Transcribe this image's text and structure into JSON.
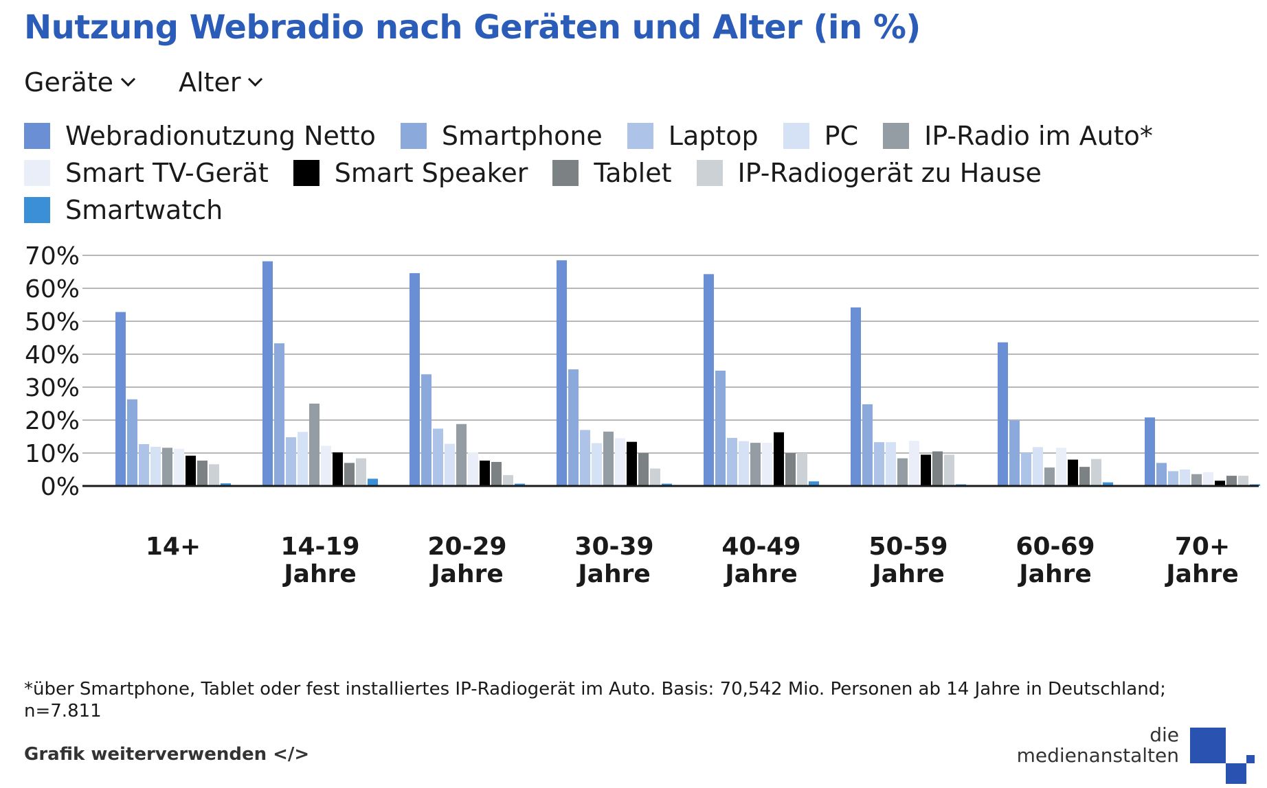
{
  "header": {
    "title": "Nutzung Webradio nach Geräten und Alter (in %)"
  },
  "filters": [
    {
      "label": "Geräte",
      "icon": "chevron-down-icon"
    },
    {
      "label": "Alter",
      "icon": "chevron-down-icon"
    }
  ],
  "chart_data": {
    "type": "bar",
    "ylim": [
      0,
      70
    ],
    "yticks": [
      "0%",
      "10%",
      "20%",
      "30%",
      "40%",
      "50%",
      "60%",
      "70%"
    ],
    "grid": true,
    "legend_position": "top",
    "categories": [
      [
        "14+"
      ],
      [
        "14-19",
        "Jahre"
      ],
      [
        "20-29",
        "Jahre"
      ],
      [
        "30-39",
        "Jahre"
      ],
      [
        "40-49",
        "Jahre"
      ],
      [
        "50-59",
        "Jahre"
      ],
      [
        "60-69",
        "Jahre"
      ],
      [
        "70+",
        "Jahre"
      ]
    ],
    "series": [
      {
        "name": "Webradionutzung Netto",
        "color": "#6a8fd4",
        "values": [
          52.8,
          68.2,
          64.6,
          68.5,
          64.3,
          54.2,
          43.6,
          20.8
        ]
      },
      {
        "name": "Smartphone",
        "color": "#8ca9dc",
        "values": [
          26.3,
          43.3,
          33.9,
          35.4,
          35.0,
          24.8,
          19.9,
          7.0
        ]
      },
      {
        "name": "Laptop",
        "color": "#adc3e8",
        "values": [
          12.7,
          14.8,
          17.4,
          17.0,
          14.6,
          13.3,
          10.1,
          4.5
        ]
      },
      {
        "name": "PC",
        "color": "#d5e1f4",
        "values": [
          11.9,
          16.4,
          12.8,
          13.0,
          13.6,
          13.3,
          11.8,
          5.0
        ]
      },
      {
        "name": "IP-Radio im Auto*",
        "color": "#939da3",
        "values": [
          11.6,
          25.0,
          18.8,
          16.5,
          13.1,
          8.4,
          5.6,
          3.6
        ]
      },
      {
        "name": "Smart TV-Gerät",
        "color": "#e9eef8",
        "values": [
          11.3,
          12.2,
          10.2,
          14.5,
          13.1,
          13.7,
          11.6,
          4.2
        ]
      },
      {
        "name": "Smart Speaker",
        "color": "#000000",
        "values": [
          9.2,
          10.2,
          7.7,
          13.4,
          16.3,
          9.5,
          8.0,
          1.6
        ]
      },
      {
        "name": "Tablet",
        "color": "#7c8284",
        "values": [
          7.7,
          7.0,
          7.3,
          10.0,
          10.0,
          10.5,
          5.8,
          3.1
        ]
      },
      {
        "name": "IP-Radiogerät zu Hause",
        "color": "#cbd1d5",
        "values": [
          6.6,
          8.4,
          3.3,
          5.3,
          10.0,
          9.5,
          8.2,
          3.1
        ]
      },
      {
        "name": "Smartwatch",
        "color": "#3a8fd6",
        "values": [
          0.8,
          2.2,
          0.7,
          0.7,
          1.4,
          0.5,
          1.1,
          0.5
        ]
      }
    ]
  },
  "footnote": "*über Smartphone, Tablet oder fest installiertes IP-Radiogerät im Auto. Basis: 70,542 Mio. Personen ab 14 Jahre in Deutschland; n=7.811",
  "footer": {
    "reuse_label": "Grafik weiterverwenden </>"
  },
  "logo": {
    "line1": "die",
    "line2": "medienanstalten",
    "color": "#2a52b0"
  }
}
